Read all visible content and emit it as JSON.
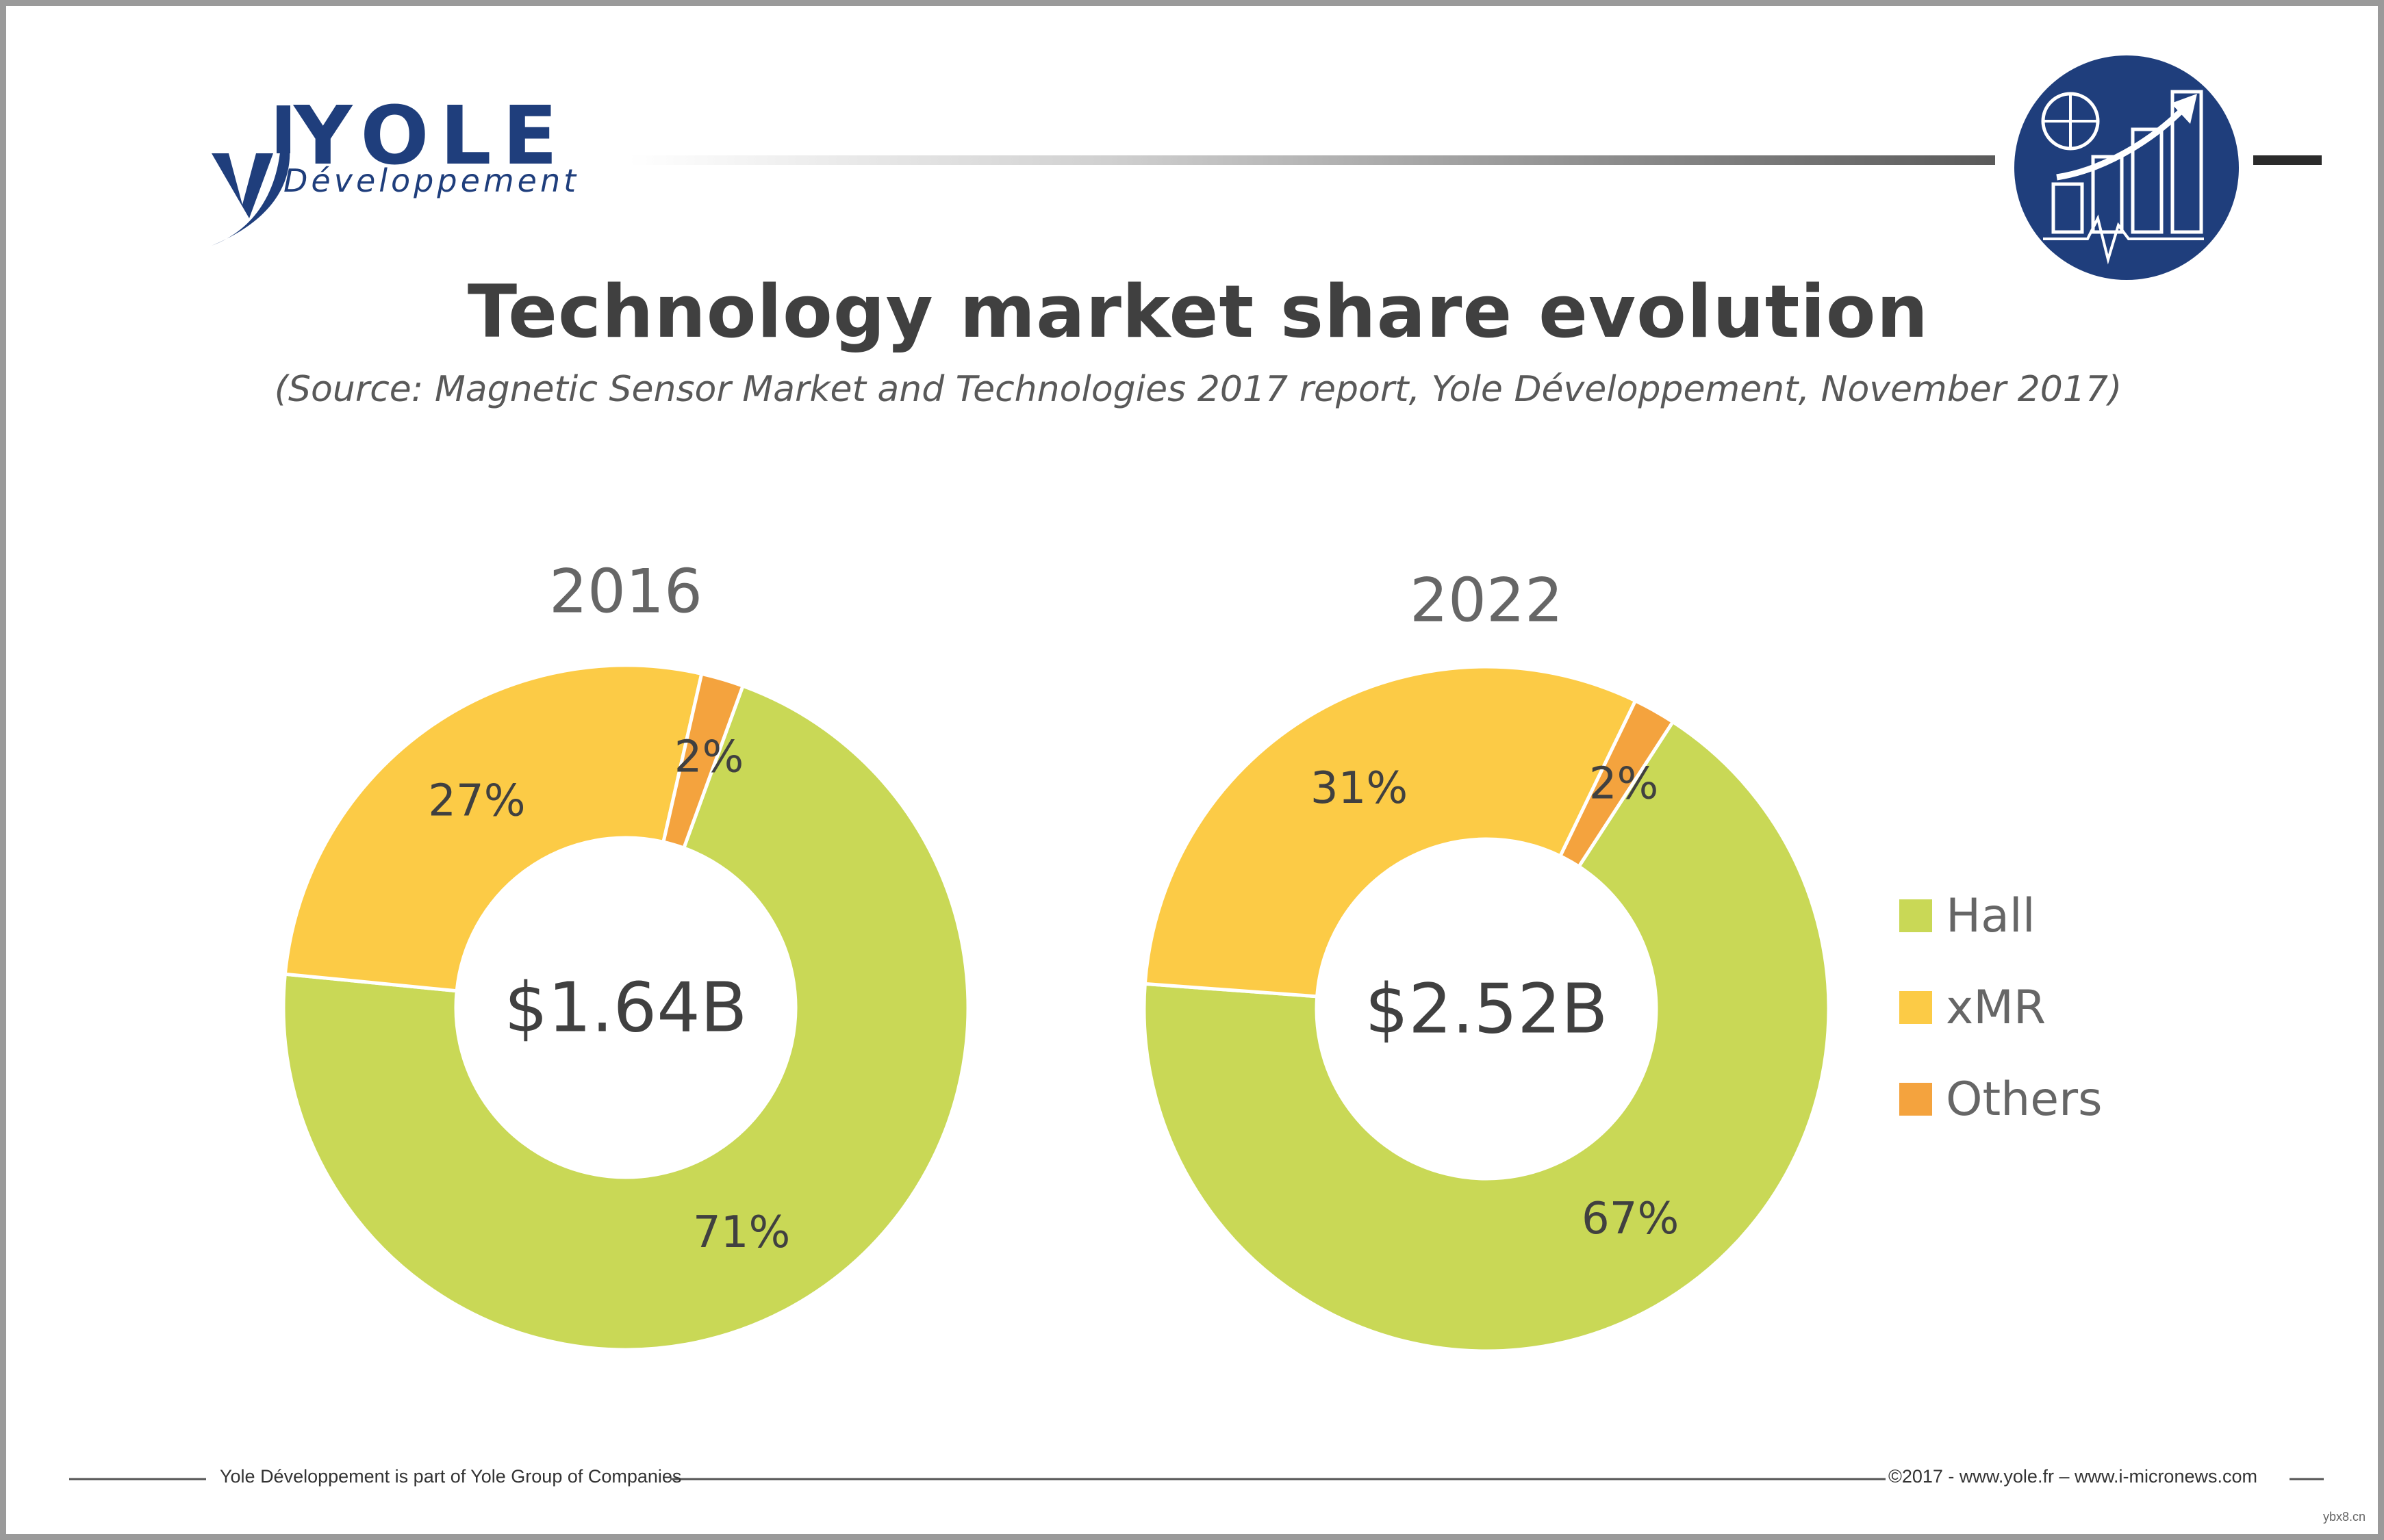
{
  "header": {
    "logo_text": "YOLE",
    "logo_subtext": "Développement",
    "accent_color": "#1f3e7c"
  },
  "title": "Technology market share evolution",
  "subtitle": "(Source: Magnetic Sensor Market and Technologies 2017 report, Yole Développement, November 2017)",
  "chart_data": [
    {
      "type": "pie",
      "variant": "donut",
      "title": "2016",
      "center_label": "$1.64B",
      "categories": [
        "Hall",
        "xMR",
        "Others"
      ],
      "values": [
        71,
        27,
        2
      ],
      "data_labels": [
        "71%",
        "27%",
        "2%"
      ],
      "colors": [
        "#c9d856",
        "#fccb46",
        "#f4a33e"
      ]
    },
    {
      "type": "pie",
      "variant": "donut",
      "title": "2022",
      "center_label": "$2.52B",
      "categories": [
        "Hall",
        "xMR",
        "Others"
      ],
      "values": [
        67,
        31,
        2
      ],
      "data_labels": [
        "67%",
        "31%",
        "2%"
      ],
      "colors": [
        "#c9d856",
        "#fccb46",
        "#f4a33e"
      ]
    }
  ],
  "legend": {
    "position": "right",
    "items": [
      {
        "label": "Hall",
        "color": "#c9d856"
      },
      {
        "label": "xMR",
        "color": "#fccb46"
      },
      {
        "label": "Others",
        "color": "#f4a33e"
      }
    ]
  },
  "footer": {
    "left": "Yole Développement is part of Yole Group of Companies",
    "right": "©2017 - www.yole.fr – www.i-micronews.com"
  },
  "watermark": "ybx8.cn"
}
